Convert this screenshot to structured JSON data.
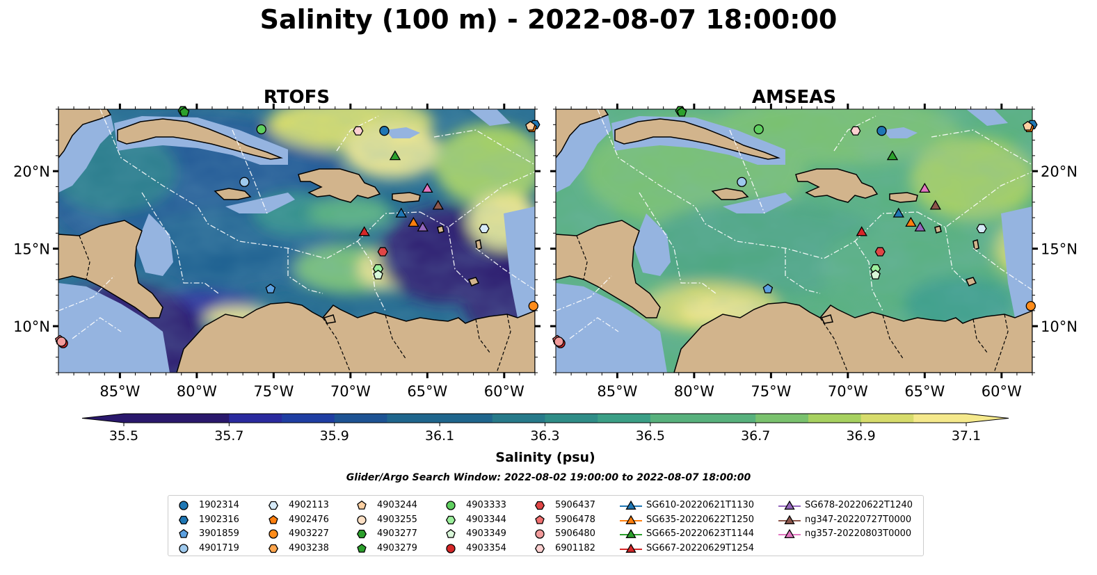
{
  "title": "Salinity (100 m) - 2022-08-07 18:00:00",
  "search_window": "Glider/Argo Search Window: 2022-08-02 19:00:00 to 2022-08-07 18:00:00",
  "colors": {
    "land": "#d2b48c",
    "shelf": "#95b4e0",
    "colormap": [
      "#2a186c",
      "#2a2a9e",
      "#1f3ea2",
      "#1d5393",
      "#1f668d",
      "#277a8a",
      "#2f8d87",
      "#3b9f86",
      "#58b17d",
      "#7ac26e",
      "#a7d160",
      "#d7dc6c",
      "#f5e98c"
    ]
  },
  "chart_data": [
    {
      "type": "heatmap",
      "title": "RTOFS",
      "variable": "Salinity (psu)",
      "xlabel": "",
      "ylabel": "",
      "xlim": [
        -89,
        -58
      ],
      "ylim": [
        7,
        24
      ],
      "x_ticks": [
        "85°W",
        "80°W",
        "75°W",
        "70°W",
        "65°W",
        "60°W"
      ],
      "y_ticks": [
        "10°N",
        "15°N",
        "20°N"
      ],
      "dominant_salinity": 36.0,
      "fresh_regions_psu": 35.5,
      "salty_regions_psu": 37.1
    },
    {
      "type": "heatmap",
      "title": "AMSEAS",
      "variable": "Salinity (psu)",
      "xlabel": "",
      "ylabel": "",
      "xlim": [
        -89,
        -58
      ],
      "ylim": [
        7,
        24
      ],
      "x_ticks": [
        "85°W",
        "80°W",
        "75°W",
        "70°W",
        "65°W",
        "60°W"
      ],
      "y_ticks": [
        "10°N",
        "15°N",
        "20°N"
      ],
      "dominant_salinity": 36.6,
      "fresh_regions_psu": 36.5,
      "salty_regions_psu": 37.0
    }
  ],
  "colorbar": {
    "label": "Salinity (psu)",
    "min": 35.5,
    "max": 37.1,
    "step": 0.1,
    "tick_labels": [
      "35.5",
      "35.7",
      "35.9",
      "36.1",
      "36.3",
      "36.5",
      "36.7",
      "36.9",
      "37.1"
    ],
    "extend": "both"
  },
  "platforms": [
    {
      "id": "1902314",
      "marker": "circle",
      "color": "#1f77b4",
      "lon": -67.8,
      "lat": 22.6
    },
    {
      "id": "1902316",
      "marker": "hexagon",
      "color": "#1f77b4",
      "lon": -58.0,
      "lat": 23.0
    },
    {
      "id": "3901859",
      "marker": "pentagon",
      "color": "#5ca0e0",
      "lon": -75.2,
      "lat": 12.4
    },
    {
      "id": "4901719",
      "marker": "circle",
      "color": "#9ec9ed",
      "lon": -76.9,
      "lat": 19.3
    },
    {
      "id": "4902113",
      "marker": "hexagon",
      "color": "#d6eaf8",
      "lon": -61.3,
      "lat": 16.3
    },
    {
      "id": "4902476",
      "marker": "pentagon",
      "color": "#ff7f0e",
      "lon": -58.2,
      "lat": 22.8
    },
    {
      "id": "4903227",
      "marker": "circle",
      "color": "#ff8c1a",
      "lon": -58.1,
      "lat": 11.3
    },
    {
      "id": "4903238",
      "marker": "hexagon",
      "color": "#ffa64d",
      "lon": -57.9,
      "lat": 22.8
    },
    {
      "id": "4903244",
      "marker": "pentagon",
      "color": "#fdd0a2",
      "lon": -58.3,
      "lat": 22.9
    },
    {
      "id": "4903255",
      "marker": "circle",
      "color": "#fde0c5",
      "lon": -57.8,
      "lat": 22.9
    },
    {
      "id": "4903277",
      "marker": "hexagon",
      "color": "#2ca02c",
      "lon": -80.9,
      "lat": 23.9
    },
    {
      "id": "4903279",
      "marker": "pentagon",
      "color": "#2ca02c",
      "lon": -80.8,
      "lat": 23.8
    },
    {
      "id": "4903333",
      "marker": "circle",
      "color": "#5fcf5f",
      "lon": -75.8,
      "lat": 22.7
    },
    {
      "id": "4903344",
      "marker": "hexagon",
      "color": "#9cef9c",
      "lon": -68.2,
      "lat": 13.7
    },
    {
      "id": "4903349",
      "marker": "pentagon",
      "color": "#d9f7d9",
      "lon": -68.2,
      "lat": 13.3
    },
    {
      "id": "4903354",
      "marker": "circle",
      "color": "#d62728",
      "lon": -88.7,
      "lat": 8.9
    },
    {
      "id": "5906437",
      "marker": "hexagon",
      "color": "#e04646",
      "lon": -67.9,
      "lat": 14.8
    },
    {
      "id": "5906478",
      "marker": "pentagon",
      "color": "#f07070",
      "lon": -88.9,
      "lat": 9.1
    },
    {
      "id": "5906480",
      "marker": "circle",
      "color": "#f29b9b",
      "lon": -88.8,
      "lat": 9.0
    },
    {
      "id": "6901182",
      "marker": "hexagon",
      "color": "#fcd0d0",
      "lon": -69.5,
      "lat": 22.6
    },
    {
      "id": "SG610-20220621T1130",
      "marker": "triangle",
      "color": "#1f77b4",
      "lon": -66.7,
      "lat": 17.3
    },
    {
      "id": "SG635-20220622T1250",
      "marker": "triangle",
      "color": "#ff7f0e",
      "lon": -65.9,
      "lat": 16.7
    },
    {
      "id": "SG665-20220623T1144",
      "marker": "triangle",
      "color": "#2ca02c",
      "lon": -67.1,
      "lat": 21.0
    },
    {
      "id": "SG667-20220629T1254",
      "marker": "triangle",
      "color": "#d62728",
      "lon": -69.1,
      "lat": 16.1
    },
    {
      "id": "SG678-20220622T1240",
      "marker": "triangle",
      "color": "#9467bd",
      "lon": -65.3,
      "lat": 16.4
    },
    {
      "id": "ng347-20220727T0000",
      "marker": "triangle",
      "color": "#8c564b",
      "lon": -64.3,
      "lat": 17.8
    },
    {
      "id": "ng357-20220803T0000",
      "marker": "triangle",
      "color": "#e377c2",
      "lon": -65.0,
      "lat": 18.9
    }
  ]
}
